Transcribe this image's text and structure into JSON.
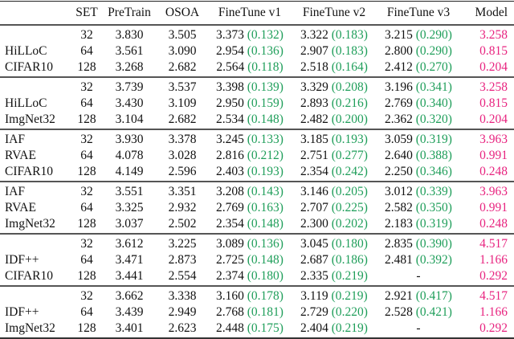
{
  "colors": {
    "gain": "#1f9e5a",
    "model": "#e8237f"
  },
  "headers": [
    "",
    "SET",
    "PreTrain",
    "OSOA",
    "FineTune v1",
    "FineTune v2",
    "FineTune v3",
    "Model"
  ],
  "groups": [
    {
      "labels": [
        "",
        "HiLLoC",
        "CIFAR10"
      ],
      "rows": [
        {
          "set": "32",
          "pretrain": "3.830",
          "osoa": "3.505",
          "ft1": "3.373",
          "ft1_gain": "(0.132)",
          "ft2": "3.322",
          "ft2_gain": "(0.183)",
          "ft3": "3.215",
          "ft3_gain": "(0.290)",
          "model": "3.258"
        },
        {
          "set": "64",
          "pretrain": "3.561",
          "osoa": "3.090",
          "ft1": "2.954",
          "ft1_gain": "(0.136)",
          "ft2": "2.907",
          "ft2_gain": "(0.183)",
          "ft3": "2.800",
          "ft3_gain": "(0.290)",
          "model": "0.815"
        },
        {
          "set": "128",
          "pretrain": "3.268",
          "osoa": "2.682",
          "ft1": "2.564",
          "ft1_gain": "(0.118)",
          "ft2": "2.518",
          "ft2_gain": "(0.164)",
          "ft3": "2.412",
          "ft3_gain": "(0.270)",
          "model": "0.204"
        }
      ]
    },
    {
      "labels": [
        "",
        "HiLLoC",
        "ImgNet32"
      ],
      "rows": [
        {
          "set": "32",
          "pretrain": "3.739",
          "osoa": "3.537",
          "ft1": "3.398",
          "ft1_gain": "(0.139)",
          "ft2": "3.329",
          "ft2_gain": "(0.208)",
          "ft3": "3.196",
          "ft3_gain": "(0.341)",
          "model": "3.258"
        },
        {
          "set": "64",
          "pretrain": "3.430",
          "osoa": "3.109",
          "ft1": "2.950",
          "ft1_gain": "(0.159)",
          "ft2": "2.893",
          "ft2_gain": "(0.216)",
          "ft3": "2.769",
          "ft3_gain": "(0.340)",
          "model": "0.815"
        },
        {
          "set": "128",
          "pretrain": "3.104",
          "osoa": "2.682",
          "ft1": "2.534",
          "ft1_gain": "(0.148)",
          "ft2": "2.482",
          "ft2_gain": "(0.200)",
          "ft3": "2.362",
          "ft3_gain": "(0.320)",
          "model": "0.204"
        }
      ]
    },
    {
      "labels": [
        "IAF",
        "RVAE",
        "CIFAR10"
      ],
      "rows": [
        {
          "set": "32",
          "pretrain": "3.930",
          "osoa": "3.378",
          "ft1": "3.245",
          "ft1_gain": "(0.133)",
          "ft2": "3.185",
          "ft2_gain": "(0.193)",
          "ft3": "3.059",
          "ft3_gain": "(0.319)",
          "model": "3.963"
        },
        {
          "set": "64",
          "pretrain": "4.078",
          "osoa": "3.028",
          "ft1": "2.816",
          "ft1_gain": "(0.212)",
          "ft2": "2.751",
          "ft2_gain": "(0.277)",
          "ft3": "2.640",
          "ft3_gain": "(0.388)",
          "model": "0.991"
        },
        {
          "set": "128",
          "pretrain": "4.149",
          "osoa": "2.596",
          "ft1": "2.403",
          "ft1_gain": "(0.193)",
          "ft2": "2.354",
          "ft2_gain": "(0.242)",
          "ft3": "2.250",
          "ft3_gain": "(0.346)",
          "model": "0.248"
        }
      ]
    },
    {
      "labels": [
        "IAF",
        "RVAE",
        "ImgNet32"
      ],
      "rows": [
        {
          "set": "32",
          "pretrain": "3.551",
          "osoa": "3.351",
          "ft1": "3.208",
          "ft1_gain": "(0.143)",
          "ft2": "3.146",
          "ft2_gain": "(0.205)",
          "ft3": "3.012",
          "ft3_gain": "(0.339)",
          "model": "3.963"
        },
        {
          "set": "64",
          "pretrain": "3.325",
          "osoa": "2.932",
          "ft1": "2.769",
          "ft1_gain": "(0.163)",
          "ft2": "2.707",
          "ft2_gain": "(0.225)",
          "ft3": "2.582",
          "ft3_gain": "(0.350)",
          "model": "0.991"
        },
        {
          "set": "128",
          "pretrain": "3.037",
          "osoa": "2.502",
          "ft1": "2.354",
          "ft1_gain": "(0.148)",
          "ft2": "2.300",
          "ft2_gain": "(0.202)",
          "ft3": "2.183",
          "ft3_gain": "(0.319)",
          "model": "0.248"
        }
      ]
    },
    {
      "labels": [
        "",
        "IDF++",
        "CIFAR10"
      ],
      "rows": [
        {
          "set": "32",
          "pretrain": "3.612",
          "osoa": "3.225",
          "ft1": "3.089",
          "ft1_gain": "(0.136)",
          "ft2": "3.045",
          "ft2_gain": "(0.180)",
          "ft3": "2.835",
          "ft3_gain": "(0.390)",
          "model": "4.517"
        },
        {
          "set": "64",
          "pretrain": "3.471",
          "osoa": "2.873",
          "ft1": "2.725",
          "ft1_gain": "(0.148)",
          "ft2": "2.687",
          "ft2_gain": "(0.186)",
          "ft3": "2.481",
          "ft3_gain": "(0.392)",
          "model": "1.166"
        },
        {
          "set": "128",
          "pretrain": "3.441",
          "osoa": "2.554",
          "ft1": "2.374",
          "ft1_gain": "(0.180)",
          "ft2": "2.335",
          "ft2_gain": "(0.219)",
          "ft3": "-",
          "ft3_gain": "",
          "model": "0.292"
        }
      ]
    },
    {
      "labels": [
        "",
        "IDF++",
        "ImgNet32"
      ],
      "rows": [
        {
          "set": "32",
          "pretrain": "3.662",
          "osoa": "3.338",
          "ft1": "3.160",
          "ft1_gain": "(0.178)",
          "ft2": "3.119",
          "ft2_gain": "(0.219)",
          "ft3": "2.921",
          "ft3_gain": "(0.417)",
          "model": "4.517"
        },
        {
          "set": "64",
          "pretrain": "3.439",
          "osoa": "2.949",
          "ft1": "2.768",
          "ft1_gain": "(0.181)",
          "ft2": "2.729",
          "ft2_gain": "(0.220)",
          "ft3": "2.528",
          "ft3_gain": "(0.421)",
          "model": "1.166"
        },
        {
          "set": "128",
          "pretrain": "3.401",
          "osoa": "2.623",
          "ft1": "2.448",
          "ft1_gain": "(0.175)",
          "ft2": "2.404",
          "ft2_gain": "(0.219)",
          "ft3": "-",
          "ft3_gain": "",
          "model": "0.292"
        }
      ]
    }
  ]
}
